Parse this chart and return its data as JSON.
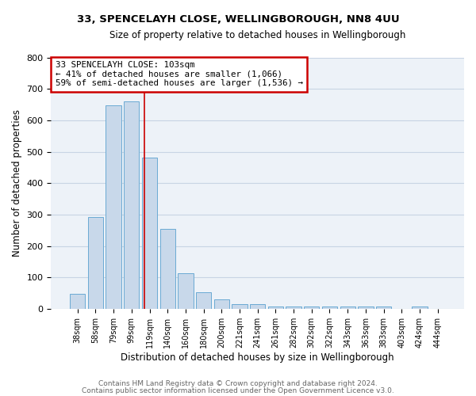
{
  "title1": "33, SPENCELAYH CLOSE, WELLINGBOROUGH, NN8 4UU",
  "title2": "Size of property relative to detached houses in Wellingborough",
  "xlabel": "Distribution of detached houses by size in Wellingborough",
  "ylabel": "Number of detached properties",
  "bar_labels": [
    "38sqm",
    "58sqm",
    "79sqm",
    "99sqm",
    "119sqm",
    "140sqm",
    "160sqm",
    "180sqm",
    "200sqm",
    "221sqm",
    "241sqm",
    "261sqm",
    "282sqm",
    "302sqm",
    "322sqm",
    "343sqm",
    "363sqm",
    "383sqm",
    "403sqm",
    "424sqm",
    "444sqm"
  ],
  "bar_heights": [
    48,
    293,
    648,
    660,
    480,
    253,
    113,
    52,
    30,
    15,
    15,
    8,
    8,
    8,
    8,
    8,
    8,
    8,
    0,
    8,
    0
  ],
  "bar_color": "#c8d8ea",
  "bar_edge_color": "#6aaad4",
  "grid_color": "#c8d4e4",
  "background_color": "#edf2f8",
  "red_line_x": 3.7,
  "annotation_text": "33 SPENCELAYH CLOSE: 103sqm\n← 41% of detached houses are smaller (1,066)\n59% of semi-detached houses are larger (1,536) →",
  "annotation_box_color": "#cc0000",
  "ylim": [
    0,
    800
  ],
  "yticks": [
    0,
    100,
    200,
    300,
    400,
    500,
    600,
    700,
    800
  ],
  "footer_line1": "Contains HM Land Registry data © Crown copyright and database right 2024.",
  "footer_line2": "Contains public sector information licensed under the Open Government Licence v3.0."
}
